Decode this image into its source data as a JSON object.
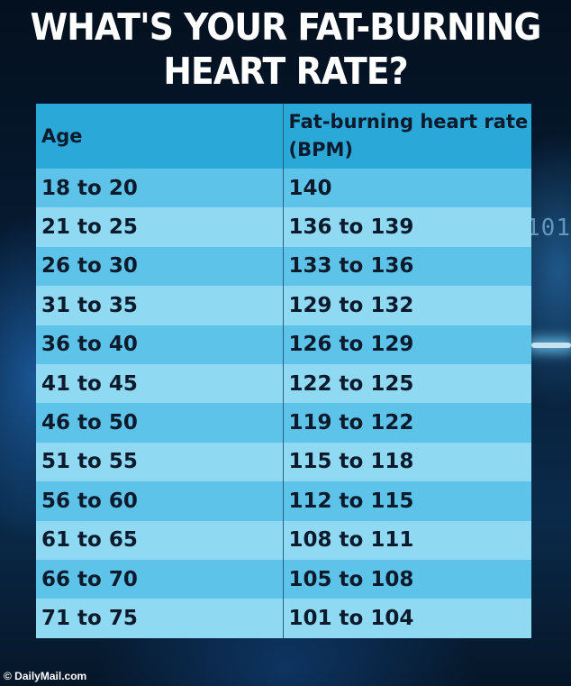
{
  "title": "WHAT'S YOUR FAT-BURNING HEART RATE?",
  "table": {
    "headers": [
      "Age",
      "Fat-burning heart rate (BPM)"
    ],
    "rows": [
      [
        "18 to 20",
        "140"
      ],
      [
        "21 to 25",
        "136 to 139"
      ],
      [
        "26 to 30",
        "133 to 136"
      ],
      [
        "31 to 35",
        "129 to 132"
      ],
      [
        "36 to 40",
        "126 to 129"
      ],
      [
        "41 to 45",
        "122 to 125"
      ],
      [
        "46 to 50",
        "119 to 122"
      ],
      [
        "51 to 55",
        "115 to 118"
      ],
      [
        "56 to 60",
        "112 to 115"
      ],
      [
        "61 to 65",
        "108 to 111"
      ],
      [
        "66 to 70",
        "105 to 108"
      ],
      [
        "71 to 75",
        "101 to 104"
      ]
    ]
  },
  "background_text": "101",
  "footer": "© DailyMail.com",
  "colors": {
    "header_bg": "#2aa9d8",
    "row_dark": "#5dc3e8",
    "row_light": "#8fd9f3",
    "text": "#0c1a2b",
    "title": "#ffffff"
  }
}
